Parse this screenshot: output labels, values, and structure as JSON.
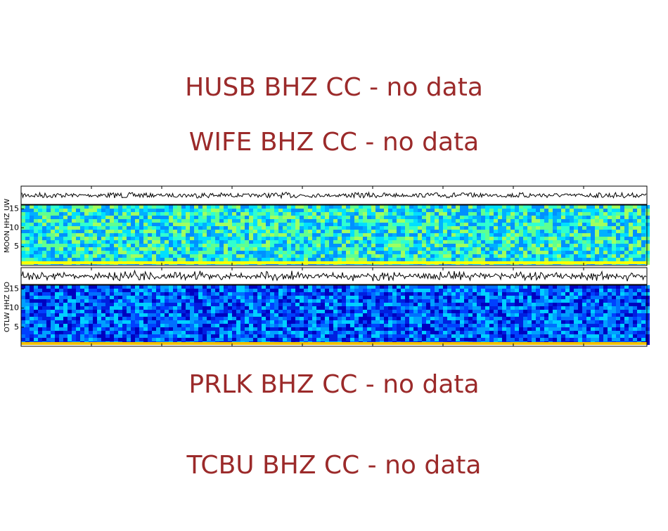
{
  "messages": [
    "HUSB BHZ CC - no data",
    "WIFE BHZ CC - no data",
    "PRLK BHZ CC - no data",
    "TCBU BHZ CC - no data"
  ],
  "panels": [
    {
      "label": "MOON HHZ UW",
      "ylim": [
        0,
        16
      ],
      "yticks": [
        5,
        10,
        15
      ]
    },
    {
      "label": "OTLW HHZ UO",
      "ylim": [
        0,
        16
      ],
      "yticks": [
        5,
        10,
        15
      ]
    }
  ]
}
